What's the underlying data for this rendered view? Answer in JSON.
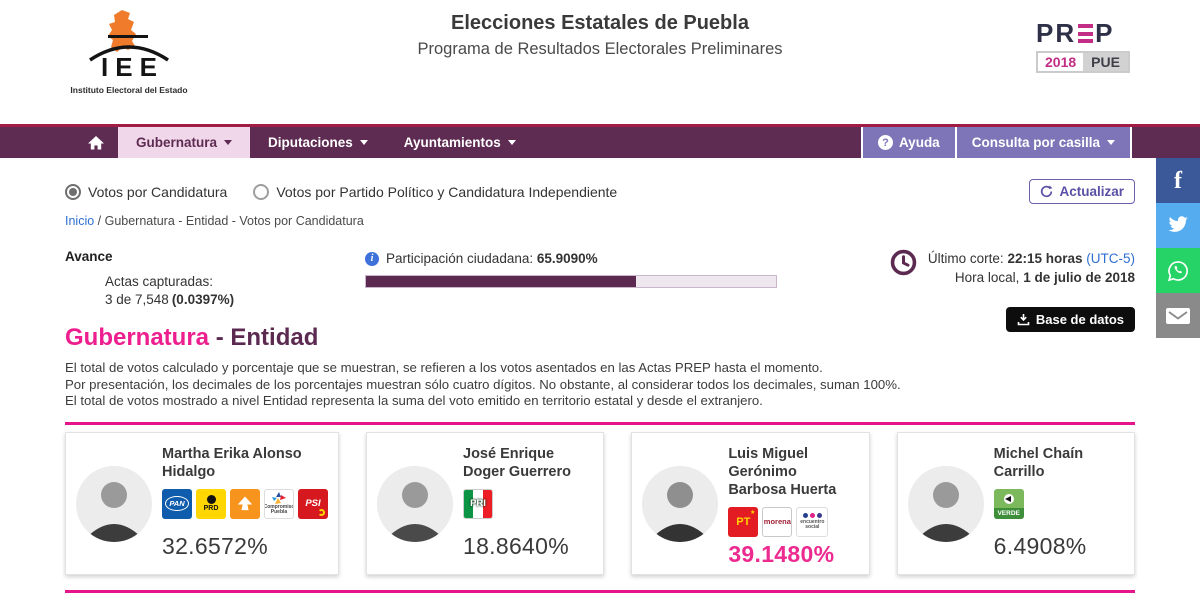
{
  "colors": {
    "nav_purple": "#5e2b52",
    "nav_top_line": "#a11c44",
    "nav_right_purple": "#7d75b7",
    "accent_pink": "#e6138b",
    "dark_purple": "#5c2a50",
    "heading_pink": "#ed1f8f",
    "leading_pct_pink": "#ed2a90",
    "link_blue": "#2f6fd0",
    "facebook": "#3b5998",
    "twitter": "#55acee",
    "whatsapp": "#25d366",
    "email_gray": "#8a8a8a"
  },
  "header": {
    "iee_acronym": "IEE",
    "iee_caption": "Instituto Electoral del Estado",
    "title": "Elecciones Estatales de Puebla",
    "subtitle": "Programa de Resultados Electorales Preliminares",
    "prep": {
      "p1": "PR",
      "p2": "P",
      "year": "2018",
      "state": "PUE"
    }
  },
  "nav": {
    "items": [
      {
        "label": "Gubernatura",
        "active": true
      },
      {
        "label": "Diputaciones",
        "active": false
      },
      {
        "label": "Ayuntamientos",
        "active": false
      }
    ],
    "ayuda": "Ayuda",
    "consulta": "Consulta por casilla"
  },
  "controls": {
    "radio_candidatura": "Votos por Candidatura",
    "radio_partido": "Votos por Partido Político y Candidatura Independiente",
    "actualizar": "Actualizar"
  },
  "breadcrumb": {
    "home": "Inicio",
    "rest": " / Gubernatura - Entidad -  Votos por Candidatura"
  },
  "avance": {
    "title": "Avance",
    "actas_label": "Actas capturadas:",
    "actas_value": "3 de 7,548",
    "actas_pct": "(0.0397%)",
    "participacion_label": "Participación ciudadana:",
    "participacion_value": "65.9090%",
    "participacion_pct": 65.909,
    "corte_label": "Último corte:",
    "corte_value": "22:15 horas",
    "corte_tz": "(UTC-5)",
    "hora_label": "Hora local,",
    "hora_value": "1 de julio de 2018",
    "base_datos": "Base de datos"
  },
  "section": {
    "title_main": "Gubernatura",
    "title_suffix": " - Entidad",
    "description": [
      "El total de votos calculado y porcentaje que se muestran, se refieren a los votos asentados en las Actas PREP hasta el momento.",
      "Por presentación, los decimales de los porcentajes muestran sólo cuatro dígitos. No obstante, al considerar todos los decimales, suman 100%.",
      "El total de votos mostrado a nivel Entidad representa la suma del voto emitido en territorio estatal y desde el extranjero."
    ]
  },
  "candidates": [
    {
      "name": "Martha Erika Alonso Hidalgo",
      "pct": "32.6572%",
      "leading": false,
      "parties": [
        "PAN",
        "PRD",
        "Movimiento Ciudadano",
        "Compromiso por Puebla",
        "PSI"
      ]
    },
    {
      "name": "José Enrique Doger Guerrero",
      "pct": "18.8640%",
      "leading": false,
      "parties": [
        "PRI"
      ]
    },
    {
      "name": "Luis Miguel Gerónimo Barbosa Huerta",
      "pct": "39.1480%",
      "leading": true,
      "parties": [
        "PT",
        "morena",
        "Encuentro Social"
      ]
    },
    {
      "name": "Michel Chaín Carrillo",
      "pct": "6.4908%",
      "leading": false,
      "parties": [
        "Partido Verde"
      ]
    }
  ],
  "party_labels": {
    "pan": "PAN",
    "prd": "PRD",
    "pri": "PRI",
    "psi": "PSI",
    "pt": "PT",
    "morena": "morena",
    "es": "encuentro social",
    "cpp": "Compromiso Puebla",
    "verde": "VERDE"
  },
  "social": {
    "facebook_glyph": "f",
    "buttons": [
      "facebook",
      "twitter",
      "whatsapp",
      "email"
    ]
  }
}
